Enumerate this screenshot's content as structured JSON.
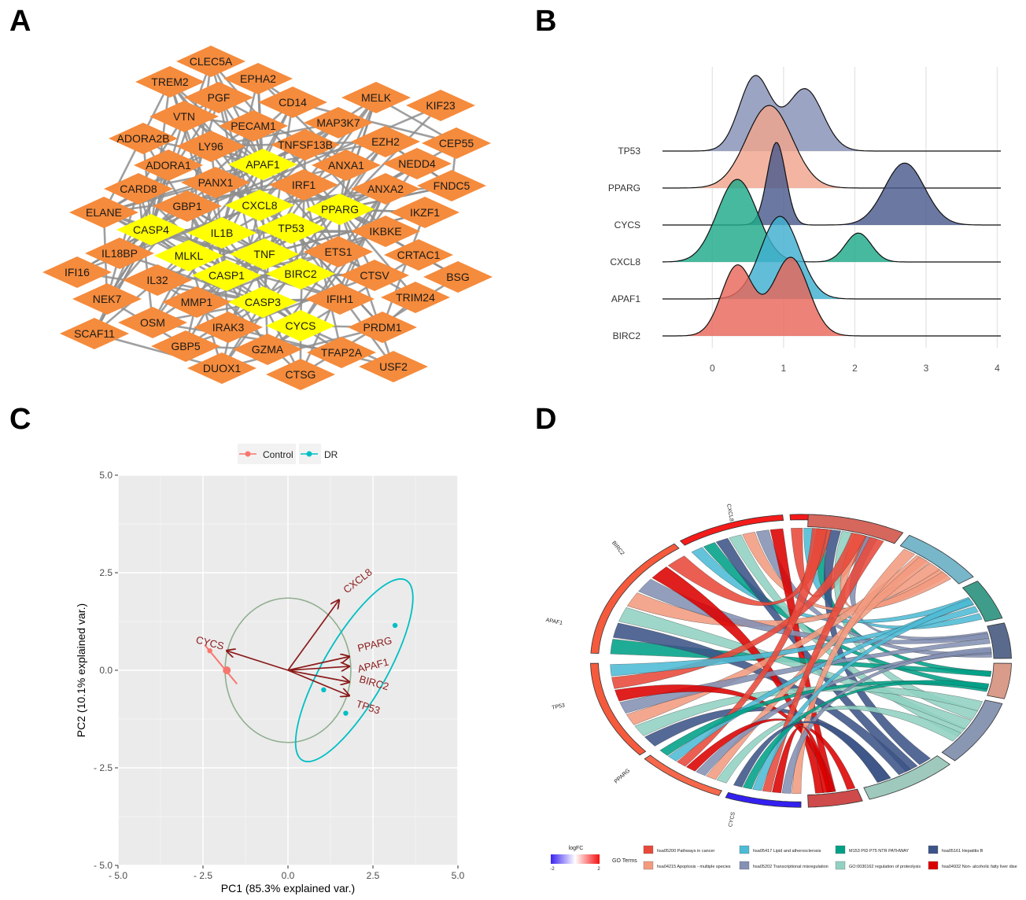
{
  "panels": {
    "a": "A",
    "b": "B",
    "c": "C",
    "d": "D"
  },
  "network": {
    "hub_nodes": [
      "APAF1",
      "CXCL8",
      "PPARG",
      "CASP4",
      "IL1B",
      "TP53",
      "MLKL",
      "TNF",
      "CASP1",
      "BIRC2",
      "CASP3",
      "CYCS"
    ],
    "nodes": [
      {
        "id": "CLEC5A",
        "hub": false
      },
      {
        "id": "TREM2",
        "hub": false
      },
      {
        "id": "EPHA2",
        "hub": false
      },
      {
        "id": "PGF",
        "hub": false
      },
      {
        "id": "CD14",
        "hub": false
      },
      {
        "id": "MELK",
        "hub": false
      },
      {
        "id": "KIF23",
        "hub": false
      },
      {
        "id": "VTN",
        "hub": false
      },
      {
        "id": "PECAM1",
        "hub": false
      },
      {
        "id": "MAP3K7",
        "hub": false
      },
      {
        "id": "ADORA2B",
        "hub": false
      },
      {
        "id": "LY96",
        "hub": false
      },
      {
        "id": "TNFSF13B",
        "hub": false
      },
      {
        "id": "EZH2",
        "hub": false
      },
      {
        "id": "CEP55",
        "hub": false
      },
      {
        "id": "ADORA1",
        "hub": false
      },
      {
        "id": "APAF1",
        "hub": true
      },
      {
        "id": "ANXA1",
        "hub": false
      },
      {
        "id": "NEDD4",
        "hub": false
      },
      {
        "id": "PANX1",
        "hub": false
      },
      {
        "id": "IRF1",
        "hub": false
      },
      {
        "id": "FNDC5",
        "hub": false
      },
      {
        "id": "CARD8",
        "hub": false
      },
      {
        "id": "ANXA2",
        "hub": false
      },
      {
        "id": "GBP1",
        "hub": false
      },
      {
        "id": "CXCL8",
        "hub": true
      },
      {
        "id": "ELANE",
        "hub": false
      },
      {
        "id": "PPARG",
        "hub": true
      },
      {
        "id": "IKZF1",
        "hub": false
      },
      {
        "id": "CASP4",
        "hub": true
      },
      {
        "id": "TP53",
        "hub": true
      },
      {
        "id": "IL1B",
        "hub": true
      },
      {
        "id": "IKBKE",
        "hub": false
      },
      {
        "id": "IL18BP",
        "hub": false
      },
      {
        "id": "MLKL",
        "hub": true
      },
      {
        "id": "TNF",
        "hub": true
      },
      {
        "id": "ETS1",
        "hub": false
      },
      {
        "id": "CRTAC1",
        "hub": false
      },
      {
        "id": "IFI16",
        "hub": false
      },
      {
        "id": "IL32",
        "hub": false
      },
      {
        "id": "CASP1",
        "hub": true
      },
      {
        "id": "BIRC2",
        "hub": true
      },
      {
        "id": "CTSV",
        "hub": false
      },
      {
        "id": "BSG",
        "hub": false
      },
      {
        "id": "NEK7",
        "hub": false
      },
      {
        "id": "MMP1",
        "hub": false
      },
      {
        "id": "CASP3",
        "hub": true
      },
      {
        "id": "IFIH1",
        "hub": false
      },
      {
        "id": "TRIM24",
        "hub": false
      },
      {
        "id": "OSM",
        "hub": false
      },
      {
        "id": "IRAK3",
        "hub": false
      },
      {
        "id": "CYCS",
        "hub": true
      },
      {
        "id": "PRDM1",
        "hub": false
      },
      {
        "id": "SCAF11",
        "hub": false
      },
      {
        "id": "GBP5",
        "hub": false
      },
      {
        "id": "GZMA",
        "hub": false
      },
      {
        "id": "TFAP2A",
        "hub": false
      },
      {
        "id": "DUOX1",
        "hub": false
      },
      {
        "id": "CTSG",
        "hub": false
      },
      {
        "id": "USF2",
        "hub": false
      }
    ],
    "colors": {
      "node": "#f58b3c",
      "hub": "#ffff00",
      "edge": "#8e8e8e"
    }
  },
  "ridgeline": {
    "chart_data": {
      "type": "area",
      "series": [
        {
          "name": "TP53",
          "peaks": [
            [
              0.6,
              0.9,
              0.22
            ],
            [
              1.3,
              0.75,
              0.25
            ]
          ],
          "color": "#8690b6"
        },
        {
          "name": "PPARG",
          "peaks": [
            [
              0.8,
              1.0,
              0.32
            ]
          ],
          "color": "#f0a58e"
        },
        {
          "name": "CYCS",
          "peaks": [
            [
              0.9,
              1.0,
              0.13
            ],
            [
              2.7,
              0.75,
              0.28
            ]
          ],
          "color": "#4a5a8c"
        },
        {
          "name": "CXCL8",
          "peaks": [
            [
              0.35,
              1.0,
              0.28
            ],
            [
              2.05,
              0.35,
              0.18
            ]
          ],
          "color": "#1fa98a"
        },
        {
          "name": "APAF1",
          "peaks": [
            [
              0.95,
              1.0,
              0.27
            ]
          ],
          "color": "#3fb0cf"
        },
        {
          "name": "BIRC2",
          "peaks": [
            [
              0.35,
              0.85,
              0.22
            ],
            [
              1.1,
              0.95,
              0.25
            ]
          ],
          "color": "#e8675a"
        }
      ],
      "xlim": [
        -0.7,
        4.05
      ],
      "x_ticks": [
        "0",
        "1",
        "2",
        "3",
        "4"
      ],
      "grid": true
    }
  },
  "pca": {
    "legend": {
      "control": "Control",
      "dr": "DR"
    },
    "colors": {
      "control": "#f8766d",
      "dr": "#00bfc4",
      "arrow": "#8b1a1a",
      "ellipse": "#8fae8f"
    },
    "chart_data": {
      "type": "scatter",
      "xlabel": "PC1 (85.3% explained var.)",
      "ylabel": "PC2 (10.1% explained var.)",
      "xlim": [
        -5.0,
        5.0
      ],
      "ylim": [
        -5.0,
        5.0
      ],
      "x_ticks": [
        "- 5.0",
        "- 2.5",
        "0.0",
        "2.5",
        "5.0"
      ],
      "y_ticks": [
        "5.0",
        "2.5",
        "0.0",
        "- 2.5",
        "- 5.0"
      ],
      "series": [
        {
          "name": "Control",
          "points": [
            [
              -2.3,
              0.5
            ],
            [
              -1.8,
              0.0
            ]
          ]
        },
        {
          "name": "DR",
          "points": [
            [
              3.15,
              1.15
            ],
            [
              1.05,
              -0.5
            ],
            [
              1.7,
              -1.1
            ]
          ]
        }
      ],
      "loadings": [
        {
          "name": "CXCL8",
          "x": 1.5,
          "y": 1.8
        },
        {
          "name": "PPARG",
          "x": 1.8,
          "y": 0.35
        },
        {
          "name": "APAF1",
          "x": 1.8,
          "y": 0.1
        },
        {
          "name": "BIRC2",
          "x": 1.8,
          "y": -0.3
        },
        {
          "name": "TP53",
          "x": 1.8,
          "y": -0.65
        },
        {
          "name": "CYCS",
          "x": -1.8,
          "y": 0.5
        }
      ]
    }
  },
  "chord": {
    "genes": [
      "CXCL8",
      "BIRC2",
      "APAF1",
      "TP53",
      "PPARG",
      "CYCS"
    ],
    "legend_title": "logFC",
    "scale_min": "-2",
    "scale_max": "2",
    "terms_title": "GO Terms",
    "terms": [
      {
        "label": "hsa05200 Pathways in cancer",
        "color": "#e8493a"
      },
      {
        "label": "hsa04215 Apoptosis - multiple species",
        "color": "#f39b7f"
      },
      {
        "label": "hsa05417 Lipid and atherosclerosis",
        "color": "#4dbbd5"
      },
      {
        "label": "hsa05202 Transcriptional misregulation",
        "color": "#8491b4"
      },
      {
        "label": "M153 PID P75 NTR PATHWAY",
        "color": "#00a087"
      },
      {
        "label": "GO:0030162 regulation of proteolysis",
        "color": "#91d1c2"
      },
      {
        "label": "hsa05161 Hepatitis B",
        "color": "#3c5488"
      },
      {
        "label": "hsa04932 Non- alcoholic fatty liver dise",
        "color": "#dc0000"
      }
    ]
  }
}
